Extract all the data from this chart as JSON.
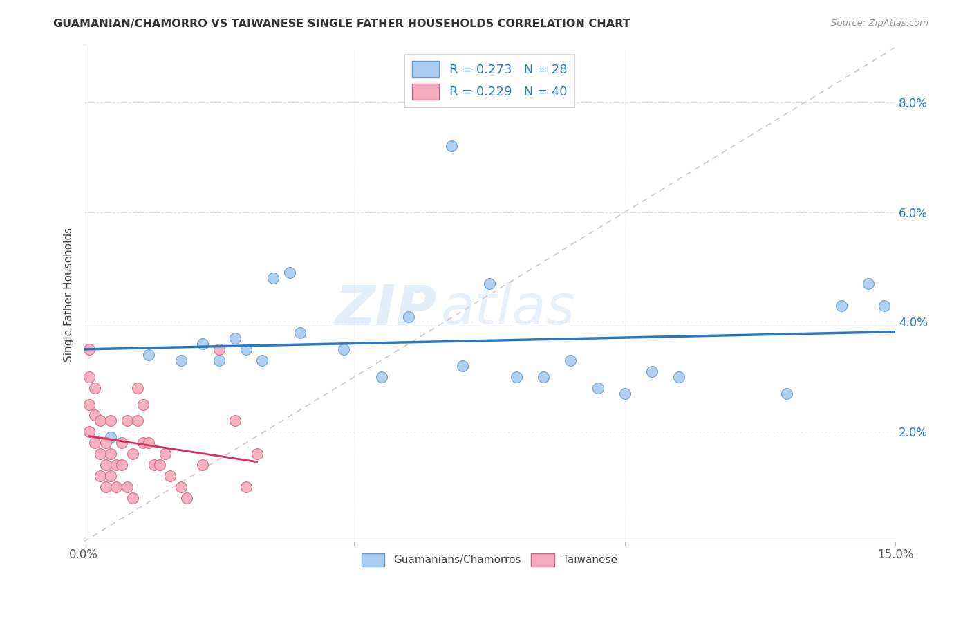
{
  "title": "GUAMANIAN/CHAMORRO VS TAIWANESE SINGLE FATHER HOUSEHOLDS CORRELATION CHART",
  "source": "Source: ZipAtlas.com",
  "ylabel": "Single Father Households",
  "xlim": [
    0,
    0.15
  ],
  "ylim": [
    0,
    0.09
  ],
  "blue_scatter_x": [
    0.068,
    0.022,
    0.028,
    0.03,
    0.033,
    0.035,
    0.038,
    0.04,
    0.048,
    0.055,
    0.06,
    0.075,
    0.08,
    0.09,
    0.095,
    0.1,
    0.105,
    0.11,
    0.13,
    0.14,
    0.145,
    0.148,
    0.005,
    0.012,
    0.018,
    0.025,
    0.07,
    0.085
  ],
  "blue_scatter_y": [
    0.072,
    0.036,
    0.037,
    0.035,
    0.033,
    0.048,
    0.049,
    0.038,
    0.035,
    0.03,
    0.041,
    0.047,
    0.03,
    0.033,
    0.028,
    0.027,
    0.031,
    0.03,
    0.027,
    0.043,
    0.047,
    0.043,
    0.019,
    0.034,
    0.033,
    0.033,
    0.032,
    0.03
  ],
  "pink_scatter_x": [
    0.001,
    0.001,
    0.001,
    0.001,
    0.002,
    0.002,
    0.002,
    0.003,
    0.003,
    0.003,
    0.004,
    0.004,
    0.004,
    0.005,
    0.005,
    0.005,
    0.006,
    0.006,
    0.007,
    0.007,
    0.008,
    0.008,
    0.009,
    0.009,
    0.01,
    0.01,
    0.011,
    0.011,
    0.012,
    0.013,
    0.014,
    0.015,
    0.016,
    0.018,
    0.019,
    0.022,
    0.025,
    0.028,
    0.03,
    0.032
  ],
  "pink_scatter_y": [
    0.035,
    0.03,
    0.025,
    0.02,
    0.028,
    0.023,
    0.018,
    0.022,
    0.016,
    0.012,
    0.018,
    0.014,
    0.01,
    0.022,
    0.016,
    0.012,
    0.014,
    0.01,
    0.018,
    0.014,
    0.022,
    0.01,
    0.016,
    0.008,
    0.028,
    0.022,
    0.025,
    0.018,
    0.018,
    0.014,
    0.014,
    0.016,
    0.012,
    0.01,
    0.008,
    0.014,
    0.035,
    0.022,
    0.01,
    0.016
  ],
  "blue_R": 0.273,
  "blue_N": 28,
  "pink_R": 0.229,
  "pink_N": 40,
  "blue_color": "#aaccf0",
  "blue_line_color": "#2979c4",
  "blue_edge_color": "#6699cc",
  "pink_color": "#f5aabb",
  "pink_line_color": "#d43060",
  "pink_edge_color": "#cc6688",
  "diagonal_color": "#ddbbcc",
  "watermark_zip": "ZIP",
  "watermark_atlas": "atlas",
  "legend_labels": [
    "Guamanians/Chamorros",
    "Taiwanese"
  ],
  "background_color": "#ffffff",
  "grid_color": "#dddddd"
}
